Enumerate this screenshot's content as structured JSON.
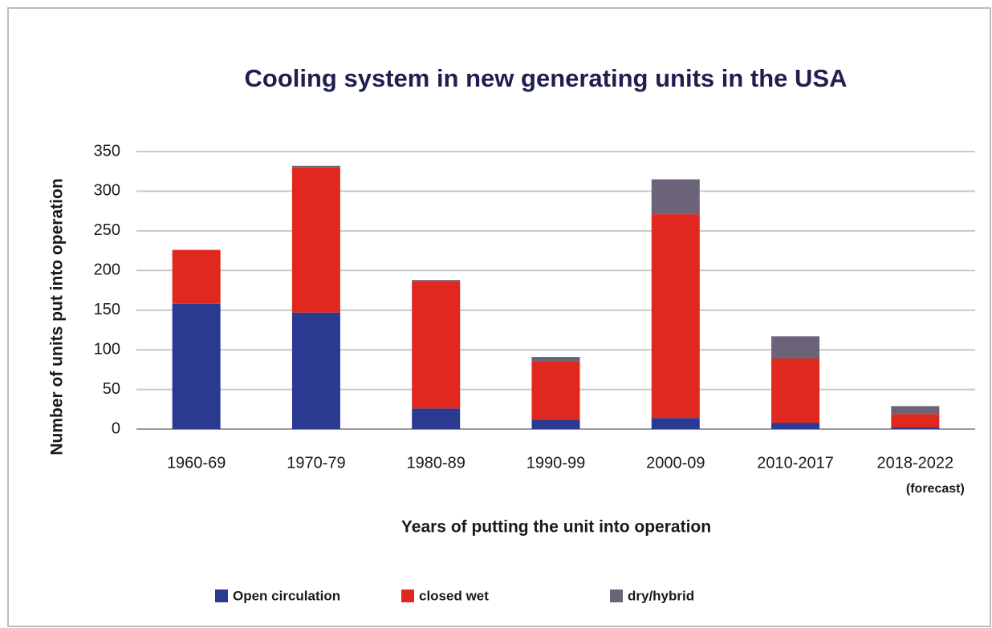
{
  "chart_data": {
    "type": "stacked_bar",
    "title": "Cooling system in new generating units in the USA",
    "x_label": "Years of putting the unit into operation",
    "y_label": "Number of units put into operation",
    "annotation": "(forecast)",
    "categories": [
      "1960-69",
      "1970-79",
      "1980-89",
      "1990-99",
      "2000-09",
      "2010-2017",
      "2018-2022"
    ],
    "series": [
      {
        "name": "Open circulation",
        "color": "#2b3990",
        "values": [
          158,
          147,
          26,
          12,
          14,
          8,
          2
        ]
      },
      {
        "name": "closed wet",
        "color": "#e0281e",
        "values": [
          68,
          183,
          161,
          73,
          257,
          81,
          17
        ]
      },
      {
        "name": "dry/hybrid",
        "color": "#6b6478",
        "values": [
          0,
          2,
          1,
          6,
          44,
          28,
          10
        ]
      }
    ],
    "ylim": [
      0,
      350
    ],
    "yticks": [
      0,
      50,
      100,
      150,
      200,
      250,
      300,
      350
    ],
    "grid": true
  }
}
